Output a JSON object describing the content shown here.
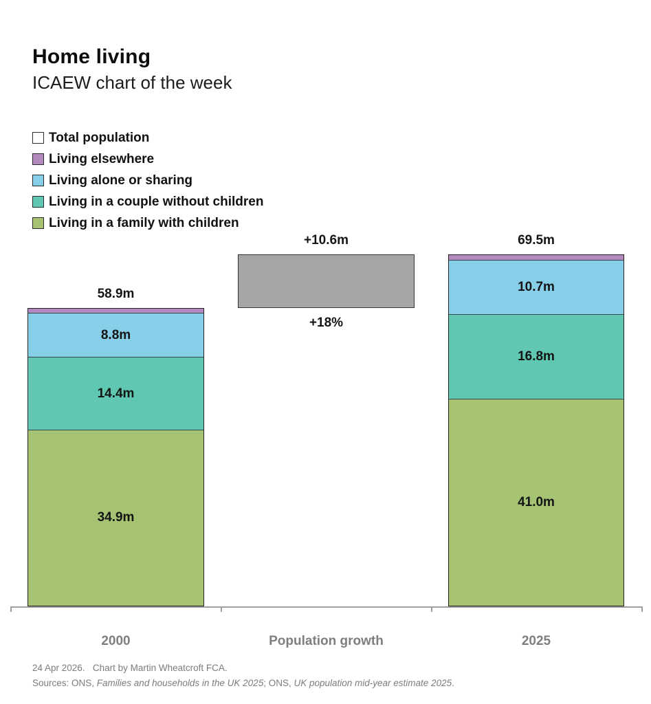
{
  "header": {
    "title": "Home living",
    "subtitle": "ICAEW chart of the week"
  },
  "legend": {
    "items": [
      {
        "label": "Total population",
        "color": "#ffffff"
      },
      {
        "label": "Living elsewhere",
        "color": "#b28abf"
      },
      {
        "label": "Living alone or sharing",
        "color": "#87cfe8"
      },
      {
        "label": "Living in a couple without children",
        "color": "#5fc7b2"
      },
      {
        "label": "Living in a family with children",
        "color": "#a5c373"
      }
    ]
  },
  "chart_data": {
    "type": "bar",
    "subtype": "stacked-bars-with-growth-bridge",
    "unit": "millions of people",
    "title": "Home living",
    "subtitle": "ICAEW chart of the week",
    "categories": [
      "2000",
      "Population growth",
      "2025"
    ],
    "ylim": [
      0,
      70
    ],
    "grid": false,
    "legend_position": "top-left",
    "segment_stack_order_bottom_to_top": [
      "Living in a family with children",
      "Living in a couple without children",
      "Living alone or sharing",
      "Living elsewhere"
    ],
    "bars": [
      {
        "category": "2000",
        "total": 58.9,
        "total_label": "58.9m",
        "segments": [
          {
            "name": "Living in a family with children",
            "value": 34.9,
            "label": "34.9m",
            "color": "#a5c373"
          },
          {
            "name": "Living in a couple without children",
            "value": 14.4,
            "label": "14.4m",
            "color": "#5fc7b2"
          },
          {
            "name": "Living alone or sharing",
            "value": 8.8,
            "label": "8.8m",
            "color": "#87cfe8"
          },
          {
            "name": "Living elsewhere",
            "value": 0.8,
            "label": "",
            "color": "#b28abf"
          }
        ]
      },
      {
        "category": "Population growth",
        "bridge": {
          "from": 58.9,
          "to": 69.5,
          "label_above": "+10.6m",
          "label_below": "+18%",
          "color": "#a6a6a6"
        }
      },
      {
        "category": "2025",
        "total": 69.5,
        "total_label": "69.5m",
        "segments": [
          {
            "name": "Living in a family with children",
            "value": 41.0,
            "label": "41.0m",
            "color": "#a5c373"
          },
          {
            "name": "Living in a couple without children",
            "value": 16.8,
            "label": "16.8m",
            "color": "#5fc7b2"
          },
          {
            "name": "Living alone or sharing",
            "value": 10.7,
            "label": "10.7m",
            "color": "#87cfe8"
          },
          {
            "name": "Living elsewhere",
            "value": 1.0,
            "label": "",
            "color": "#b28abf"
          }
        ]
      }
    ]
  },
  "footer": {
    "line1": "24 Apr 2026.   Chart by Martin Wheatcroft FCA.",
    "line2_parts": [
      {
        "text": "Sources: ONS, ",
        "italic": false
      },
      {
        "text": "Families and households in the UK 2025",
        "italic": true
      },
      {
        "text": "; ONS, ",
        "italic": false
      },
      {
        "text": "UK population mid-year estimate 2025",
        "italic": true
      },
      {
        "text": ".",
        "italic": false
      }
    ]
  }
}
